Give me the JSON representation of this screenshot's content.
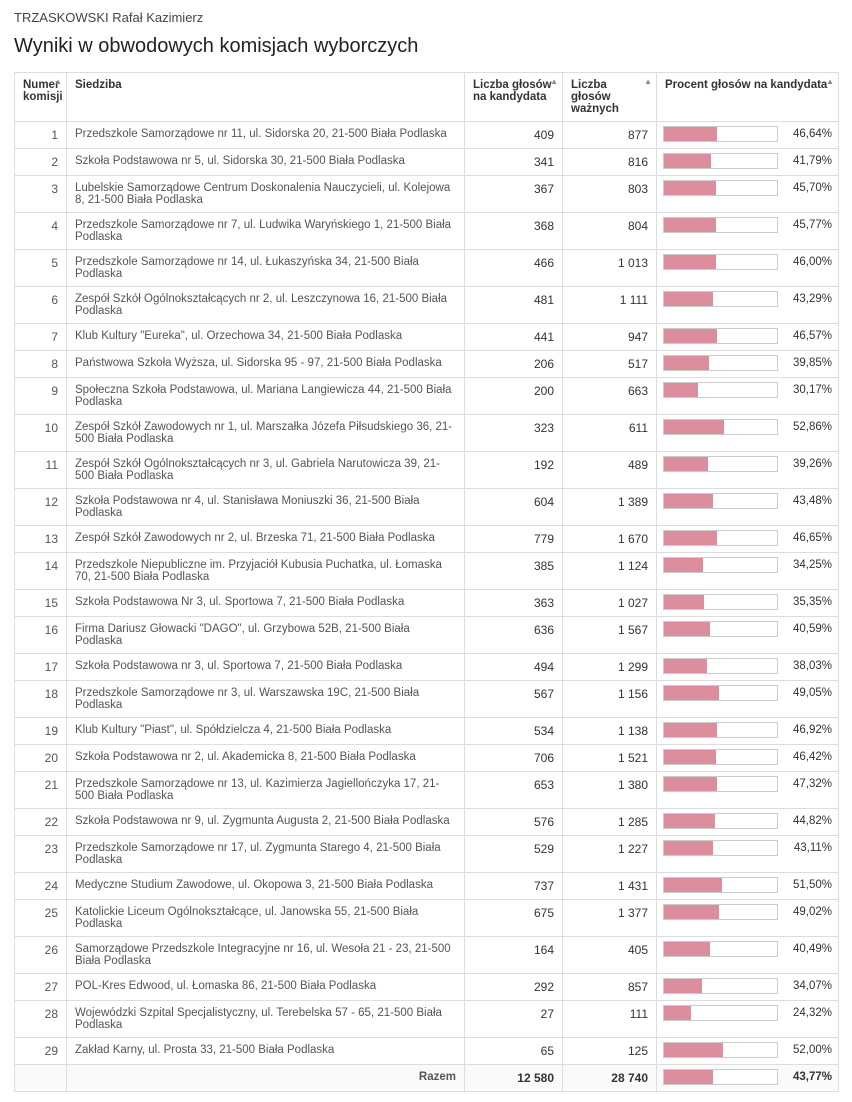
{
  "candidate_name": "TRZASKOWSKI Rafał Kazimierz",
  "section_title": "Wyniki w obwodowych komisjach wyborczych",
  "columns": {
    "num": "Numer komisji",
    "seat": "Siedziba",
    "votes": "Liczba głosów na kandydata",
    "valid": "Liczba głosów ważnych",
    "pct": "Procent głosów na kandydata"
  },
  "bar_color": "#dd8e9c",
  "rows": [
    {
      "n": "1",
      "seat": "Przedszkole Samorządowe nr 11, ul. Sidorska 20, 21-500 Biała Podlaska",
      "v": "409",
      "w": "877",
      "p": "46,64%",
      "pv": 46.64
    },
    {
      "n": "2",
      "seat": "Szkoła Podstawowa nr 5, ul. Sidorska 30, 21-500 Biała Podlaska",
      "v": "341",
      "w": "816",
      "p": "41,79%",
      "pv": 41.79
    },
    {
      "n": "3",
      "seat": "Lubelskie Samorządowe Centrum Doskonalenia Nauczycieli, ul. Kolejowa 8, 21-500 Biała Podlaska",
      "v": "367",
      "w": "803",
      "p": "45,70%",
      "pv": 45.7
    },
    {
      "n": "4",
      "seat": "Przedszkole Samorządowe nr 7, ul. Ludwika Waryńskiego 1, 21-500 Biała Podlaska",
      "v": "368",
      "w": "804",
      "p": "45,77%",
      "pv": 45.77
    },
    {
      "n": "5",
      "seat": "Przedszkole Samorządowe nr 14, ul. Łukaszyńska 34, 21-500 Biała Podlaska",
      "v": "466",
      "w": "1 013",
      "p": "46,00%",
      "pv": 46.0
    },
    {
      "n": "6",
      "seat": "Zespół Szkół Ogólnokształcących nr 2, ul. Leszczynowa 16, 21-500 Biała Podlaska",
      "v": "481",
      "w": "1 111",
      "p": "43,29%",
      "pv": 43.29
    },
    {
      "n": "7",
      "seat": "Klub Kultury \"Eureka\", ul. Orzechowa 34, 21-500 Biała Podlaska",
      "v": "441",
      "w": "947",
      "p": "46,57%",
      "pv": 46.57
    },
    {
      "n": "8",
      "seat": "Państwowa Szkoła Wyższa, ul. Sidorska 95 - 97, 21-500 Biała Podlaska",
      "v": "206",
      "w": "517",
      "p": "39,85%",
      "pv": 39.85
    },
    {
      "n": "9",
      "seat": "Społeczna Szkoła Podstawowa, ul. Mariana Langiewicza 44, 21-500 Biała Podlaska",
      "v": "200",
      "w": "663",
      "p": "30,17%",
      "pv": 30.17
    },
    {
      "n": "10",
      "seat": "Zespół Szkół Zawodowych nr 1, ul. Marszałka Józefa Piłsudskiego 36, 21-500 Biała Podlaska",
      "v": "323",
      "w": "611",
      "p": "52,86%",
      "pv": 52.86
    },
    {
      "n": "11",
      "seat": "Zespół Szkół Ogólnokształcących nr 3, ul. Gabriela Narutowicza 39, 21-500 Biała Podlaska",
      "v": "192",
      "w": "489",
      "p": "39,26%",
      "pv": 39.26
    },
    {
      "n": "12",
      "seat": "Szkoła Podstawowa nr 4, ul. Stanisława Moniuszki 36, 21-500 Biała Podlaska",
      "v": "604",
      "w": "1 389",
      "p": "43,48%",
      "pv": 43.48
    },
    {
      "n": "13",
      "seat": "Zespół Szkół Zawodowych nr 2, ul. Brzeska 71, 21-500 Biała Podlaska",
      "v": "779",
      "w": "1 670",
      "p": "46,65%",
      "pv": 46.65
    },
    {
      "n": "14",
      "seat": "Przedszkole Niepubliczne im. Przyjaciół Kubusia Puchatka, ul. Łomaska 70, 21-500 Biała Podlaska",
      "v": "385",
      "w": "1 124",
      "p": "34,25%",
      "pv": 34.25
    },
    {
      "n": "15",
      "seat": "Szkoła Podstawowa Nr 3, ul. Sportowa 7, 21-500 Biała Podlaska",
      "v": "363",
      "w": "1 027",
      "p": "35,35%",
      "pv": 35.35
    },
    {
      "n": "16",
      "seat": "Firma Dariusz Głowacki \"DAGO\", ul. Grzybowa 52B, 21-500 Biała Podlaska",
      "v": "636",
      "w": "1 567",
      "p": "40,59%",
      "pv": 40.59
    },
    {
      "n": "17",
      "seat": "Szkoła Podstawowa nr 3, ul. Sportowa 7, 21-500 Biała Podlaska",
      "v": "494",
      "w": "1 299",
      "p": "38,03%",
      "pv": 38.03
    },
    {
      "n": "18",
      "seat": "Przedszkole Samorządowe nr 3, ul. Warszawska 19C, 21-500 Biała Podlaska",
      "v": "567",
      "w": "1 156",
      "p": "49,05%",
      "pv": 49.05
    },
    {
      "n": "19",
      "seat": "Klub Kultury \"Piast\", ul. Spółdzielcza 4, 21-500 Biała Podlaska",
      "v": "534",
      "w": "1 138",
      "p": "46,92%",
      "pv": 46.92
    },
    {
      "n": "20",
      "seat": "Szkoła Podstawowa nr 2, ul. Akademicka 8, 21-500 Biała Podlaska",
      "v": "706",
      "w": "1 521",
      "p": "46,42%",
      "pv": 46.42
    },
    {
      "n": "21",
      "seat": "Przedszkole Samorządowe nr 13, ul. Kazimierza Jagiellończyka 17, 21-500 Biała Podlaska",
      "v": "653",
      "w": "1 380",
      "p": "47,32%",
      "pv": 47.32
    },
    {
      "n": "22",
      "seat": "Szkoła Podstawowa nr 9, ul. Zygmunta Augusta 2, 21-500 Biała Podlaska",
      "v": "576",
      "w": "1 285",
      "p": "44,82%",
      "pv": 44.82
    },
    {
      "n": "23",
      "seat": "Przedszkole Samorządowe nr 17, ul. Zygmunta Starego 4, 21-500 Biała Podlaska",
      "v": "529",
      "w": "1 227",
      "p": "43,11%",
      "pv": 43.11
    },
    {
      "n": "24",
      "seat": "Medyczne Studium Zawodowe, ul. Okopowa 3, 21-500 Biała Podlaska",
      "v": "737",
      "w": "1 431",
      "p": "51,50%",
      "pv": 51.5
    },
    {
      "n": "25",
      "seat": "Katolickie Liceum Ogólnokształcące, ul. Janowska 55, 21-500 Biała Podlaska",
      "v": "675",
      "w": "1 377",
      "p": "49,02%",
      "pv": 49.02
    },
    {
      "n": "26",
      "seat": "Samorządowe Przedszkole Integracyjne nr 16, ul. Wesoła 21 - 23, 21-500 Biała Podlaska",
      "v": "164",
      "w": "405",
      "p": "40,49%",
      "pv": 40.49
    },
    {
      "n": "27",
      "seat": "POL-Kres Edwood, ul. Łomaska 86, 21-500 Biała Podlaska",
      "v": "292",
      "w": "857",
      "p": "34,07%",
      "pv": 34.07
    },
    {
      "n": "28",
      "seat": "Wojewódzki Szpital Specjalistyczny, ul. Terebelska 57 - 65, 21-500 Biała Podlaska",
      "v": "27",
      "w": "111",
      "p": "24,32%",
      "pv": 24.32
    },
    {
      "n": "29",
      "seat": "Zakład Karny, ul. Prosta 33, 21-500 Biała Podlaska",
      "v": "65",
      "w": "125",
      "p": "52,00%",
      "pv": 52.0
    }
  ],
  "total": {
    "label": "Razem",
    "v": "12 580",
    "w": "28 740",
    "p": "43,77%",
    "pv": 43.77
  }
}
